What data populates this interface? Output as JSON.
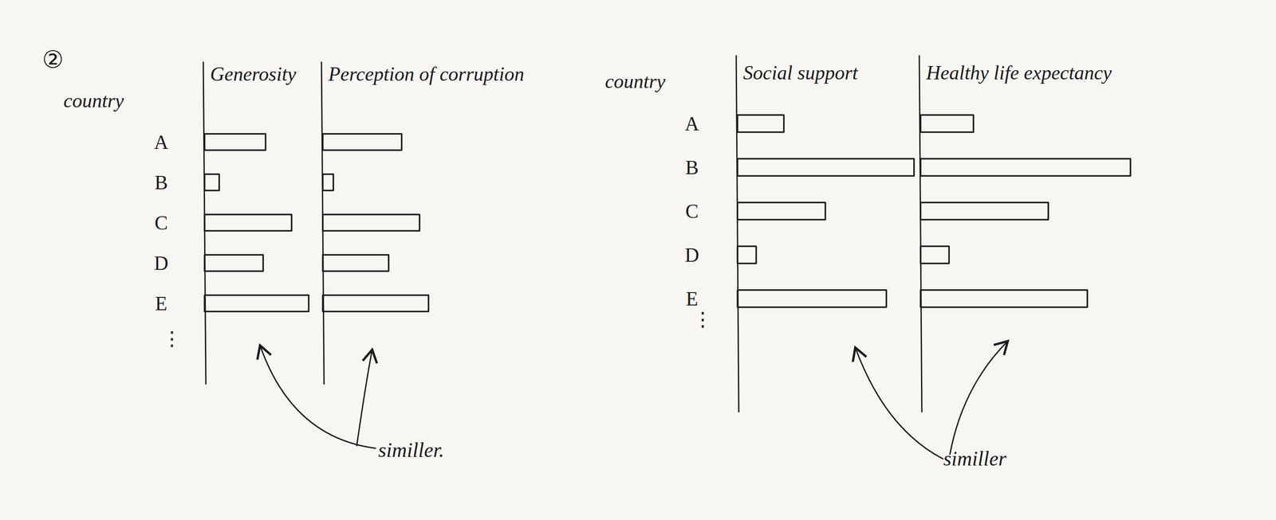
{
  "figure_label": "②",
  "chart_data": [
    {
      "type": "bar",
      "orientation": "horizontal",
      "ylabel": "country",
      "categories": [
        "A",
        "B",
        "C",
        "D",
        "E"
      ],
      "more_label": "⋮",
      "xlim": [
        0,
        140
      ],
      "tick_labels": "y",
      "color": "#1a1a1a",
      "series": [
        {
          "name": "Generosity",
          "values": [
            75,
            18,
            107,
            72,
            128
          ]
        },
        {
          "name": "Perception of corruption",
          "values": [
            97,
            13,
            119,
            81,
            130
          ]
        }
      ],
      "annotation": "similler."
    },
    {
      "type": "bar",
      "orientation": "horizontal",
      "ylabel": "country",
      "categories": [
        "A",
        "B",
        "C",
        "D",
        "E"
      ],
      "more_label": "⋮",
      "xlim": [
        0,
        260
      ],
      "tick_labels": "y",
      "color": "#1a1a1a",
      "series": [
        {
          "name": "Social support",
          "values": [
            57,
            217,
            108,
            23,
            183
          ]
        },
        {
          "name": "Healthy life expectancy",
          "values": [
            65,
            258,
            157,
            35,
            205
          ]
        }
      ],
      "annotation": "similler"
    }
  ]
}
